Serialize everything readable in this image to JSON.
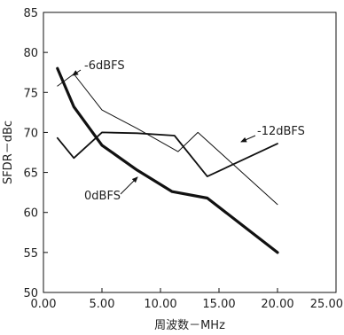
{
  "chart_data": {
    "type": "line",
    "title": "",
    "xlabel": "周波数－MHz",
    "ylabel": "SFDR－dBc",
    "xlim": [
      0,
      25
    ],
    "ylim": [
      50,
      85
    ],
    "xticks": [
      "0.00",
      "5.00",
      "10.00",
      "15.00",
      "20.00",
      "25.00"
    ],
    "yticks": [
      "50",
      "55",
      "60",
      "65",
      "70",
      "75",
      "80",
      "85"
    ],
    "grid": false,
    "legend": "none",
    "series": [
      {
        "name": "0dBFS",
        "color": "#111111",
        "weight": "thick",
        "x": [
          1.2,
          2.6,
          5.0,
          8.0,
          11.0,
          14.0,
          20.0
        ],
        "y": [
          78.0,
          73.2,
          68.4,
          65.3,
          62.6,
          61.8,
          55.0
        ]
      },
      {
        "name": "-6dBFS",
        "color": "#111111",
        "weight": "thin",
        "x": [
          1.2,
          2.6,
          5.0,
          8.0,
          11.5,
          13.2,
          20.0
        ],
        "y": [
          75.8,
          77.3,
          72.8,
          70.5,
          67.6,
          70.0,
          61.0
        ]
      },
      {
        "name": "-12dBFS",
        "color": "#111111",
        "weight": "medium",
        "x": [
          1.2,
          2.6,
          5.0,
          8.0,
          11.2,
          14.0,
          20.0
        ],
        "y": [
          69.3,
          66.8,
          70.0,
          69.9,
          69.6,
          64.5,
          68.6
        ]
      }
    ],
    "annotations": [
      {
        "text": "-6dBFS"
      },
      {
        "text": "-12dBFS"
      },
      {
        "text": "0dBFS"
      }
    ]
  }
}
